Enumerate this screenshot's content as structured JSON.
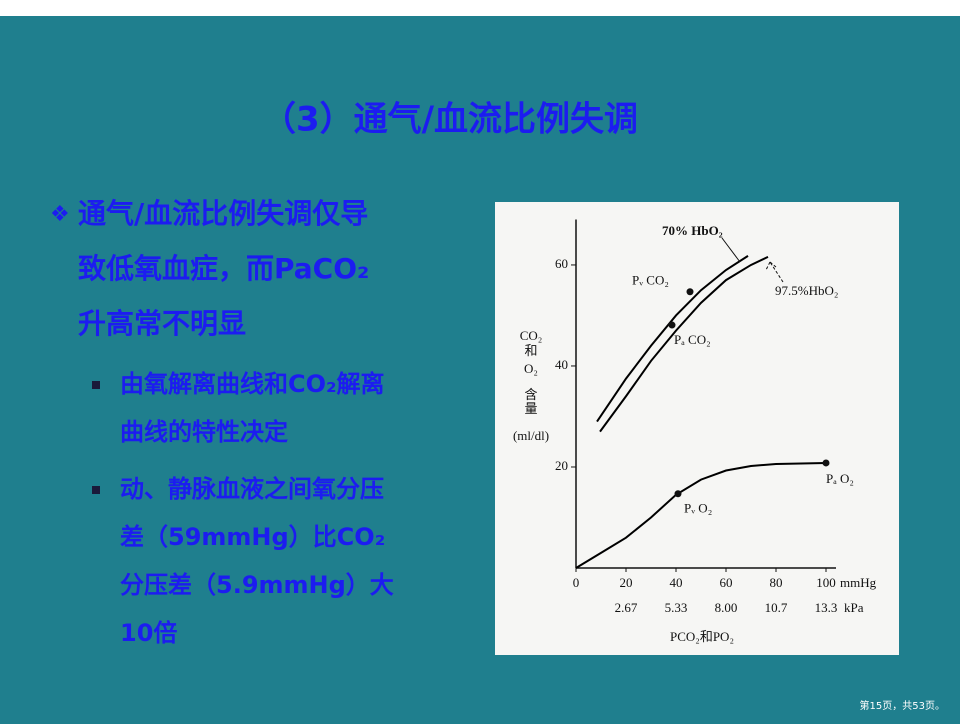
{
  "slide": {
    "title": "（3）通气/血流比例失调",
    "bullets": [
      {
        "lines": [
          "通气/血流比例失调仅导",
          "致低氧血症，而PaCO₂",
          "升高常不明显"
        ],
        "sub": [
          {
            "lines": [
              "由氧解离曲线和CO₂解离",
              "曲线的特性决定"
            ]
          },
          {
            "lines": [
              "动、静脉血液之间氧分压",
              "差（59mmHg）比CO₂",
              "分压差（5.9mmHg）大",
              "10倍"
            ]
          }
        ]
      }
    ],
    "footer": "第15页，共53页。"
  },
  "chart_data": {
    "type": "line",
    "xlim": [
      0,
      104
    ],
    "ylim": [
      0,
      69
    ],
    "xticks": [
      0,
      20,
      40,
      60,
      80,
      100
    ],
    "yticks": [
      20,
      40,
      60
    ],
    "x_unit": "mmHg",
    "kpa_labels": [
      "2.67",
      "5.33",
      "8.00",
      "10.7",
      "13.3"
    ],
    "kpa_unit": "kPa",
    "xlabel": "PCO₂和PO₂",
    "ylabel": [
      "CO₂",
      "和",
      "O₂",
      "含",
      "量",
      "(ml/dl)"
    ],
    "series": [
      {
        "color": "#000000",
        "x": [
          8.4,
          20,
          30,
          40,
          50,
          60,
          68.8
        ],
        "values": [
          29,
          37.5,
          44,
          50,
          55,
          59,
          61.8
        ]
      },
      {
        "color": "#000000",
        "x": [
          9.6,
          20,
          30,
          40,
          50,
          60,
          70,
          76.8
        ],
        "values": [
          27,
          34,
          41,
          47,
          52.5,
          57,
          60,
          61.6
        ]
      },
      {
        "color": "#000000",
        "x": [
          0,
          10,
          20,
          30,
          40,
          50,
          60,
          70,
          80,
          100
        ],
        "values": [
          0,
          3,
          6,
          10,
          14.5,
          17.5,
          19.3,
          20.2,
          20.6,
          20.8
        ]
      }
    ],
    "points": [
      {
        "label": "Pᵥ CO₂",
        "x": 45.6,
        "y": 54.7
      },
      {
        "label": "Pₐ CO₂",
        "x": 38.4,
        "y": 48.1
      },
      {
        "label": "Pᵥ O₂",
        "x": 40.8,
        "y": 14.7
      },
      {
        "label": "Pₐ O₂",
        "x": 100,
        "y": 20.8
      }
    ],
    "annotations": [
      "70% HbO₂",
      "97.5%HbO₂"
    ]
  }
}
